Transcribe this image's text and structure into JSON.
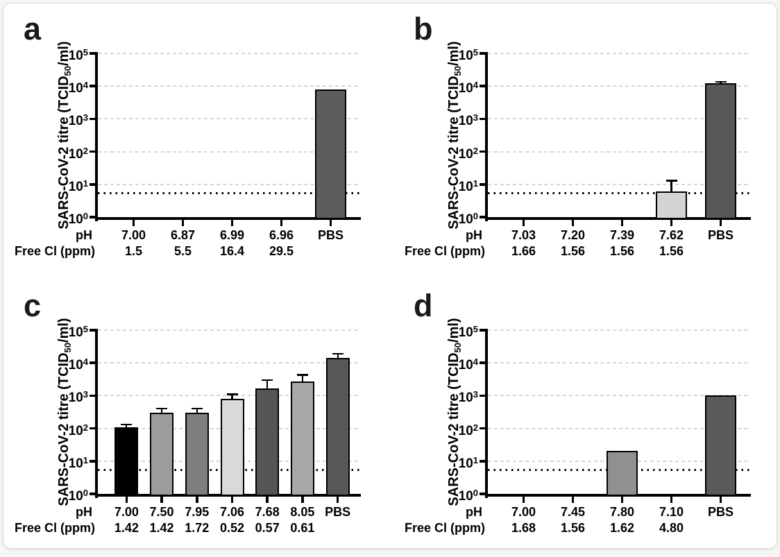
{
  "axis": {
    "ylabel_pre": "SARS-CoV-2 titre (TCID",
    "ylabel_sub": "50",
    "ylabel_post": "/ml)",
    "row_label_ph": "pH",
    "row_label_cl": "Free Cl (ppm)",
    "y_tick_base": "10",
    "y_tick_exponents": [
      "0",
      "1",
      "2",
      "3",
      "4",
      "5"
    ]
  },
  "colors": {
    "axis": "#000000",
    "gridline": "#d6d6d6",
    "detection_line": "#000000",
    "card_background": "#ffffff",
    "bar_border": "#000000"
  },
  "chart_data": [
    {
      "panel": "a",
      "type": "bar",
      "yscale": "log",
      "ylim": [
        1,
        100000
      ],
      "ylabel": "SARS-CoV-2 titre (TCID50/ml)",
      "grid": true,
      "detection_limit": 5.5,
      "ph": [
        "7.00",
        "6.87",
        "6.99",
        "6.96",
        "PBS"
      ],
      "cl": [
        "1.5",
        "5.5",
        "16.4",
        "29.5",
        ""
      ],
      "values": [
        null,
        null,
        null,
        null,
        8000
      ],
      "errors_upper": [
        null,
        null,
        null,
        null,
        null
      ],
      "bar_colors": [
        null,
        null,
        null,
        null,
        "#5d5d5d"
      ]
    },
    {
      "panel": "b",
      "type": "bar",
      "yscale": "log",
      "ylim": [
        1,
        100000
      ],
      "ylabel": "SARS-CoV-2 titre (TCID50/ml)",
      "grid": true,
      "detection_limit": 5.5,
      "ph": [
        "7.03",
        "7.20",
        "7.39",
        "7.62",
        "PBS"
      ],
      "cl": [
        "1.66",
        "1.56",
        "1.56",
        "1.56",
        ""
      ],
      "values": [
        null,
        null,
        null,
        6,
        12000
      ],
      "errors_upper": [
        null,
        null,
        null,
        13,
        13500
      ],
      "bar_colors": [
        null,
        null,
        null,
        "#d4d4d4",
        "#585858"
      ]
    },
    {
      "panel": "c",
      "type": "bar",
      "yscale": "log",
      "ylim": [
        1,
        100000
      ],
      "ylabel": "SARS-CoV-2 titre (TCID50/ml)",
      "grid": true,
      "detection_limit": 5.5,
      "ph": [
        "7.00",
        "7.50",
        "7.95",
        "7.06",
        "7.68",
        "8.05",
        "PBS"
      ],
      "cl": [
        "1.42",
        "1.42",
        "1.72",
        "0.52",
        "0.57",
        "0.61",
        ""
      ],
      "values": [
        110,
        300,
        300,
        780,
        1700,
        2700,
        14000
      ],
      "errors_upper": [
        130,
        410,
        400,
        1100,
        3000,
        4300,
        19000
      ],
      "bar_colors": [
        "#000000",
        "#9c9c9c",
        "#7e7e7e",
        "#d9d9d9",
        "#555555",
        "#a8a8a8",
        "#575757"
      ]
    },
    {
      "panel": "d",
      "type": "bar",
      "yscale": "log",
      "ylim": [
        1,
        100000
      ],
      "ylabel": "SARS-CoV-2 titre (TCID50/ml)",
      "grid": true,
      "detection_limit": 5.5,
      "ph": [
        "7.00",
        "7.45",
        "7.80",
        "7.10",
        "PBS"
      ],
      "cl": [
        "1.68",
        "1.56",
        "1.62",
        "4.80",
        ""
      ],
      "values": [
        null,
        null,
        21,
        null,
        1000
      ],
      "errors_upper": [
        null,
        null,
        null,
        null,
        null
      ],
      "bar_colors": [
        null,
        null,
        "#909090",
        null,
        "#5a5a5a"
      ]
    }
  ]
}
